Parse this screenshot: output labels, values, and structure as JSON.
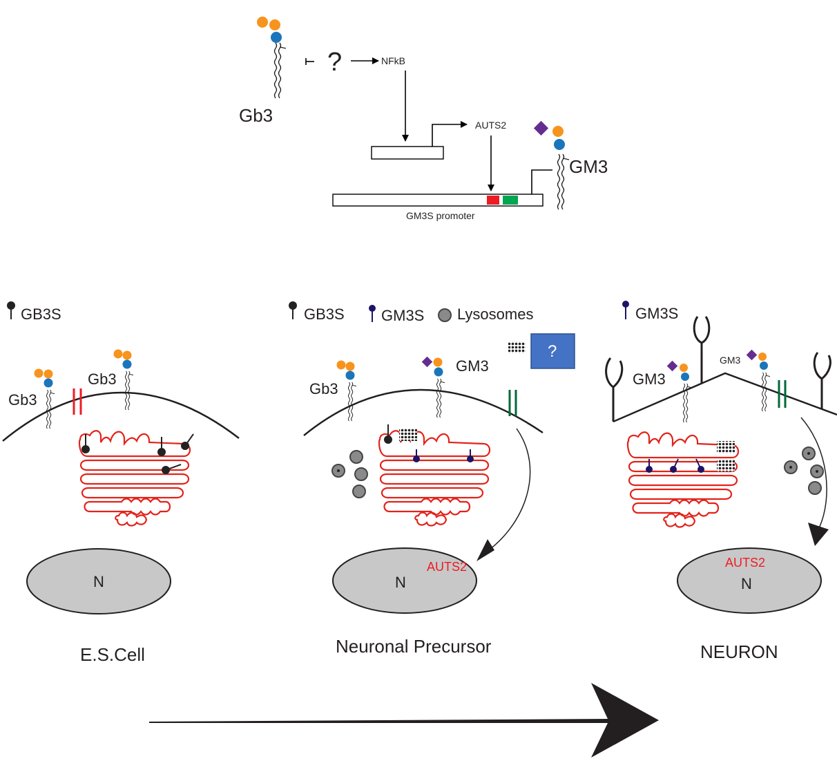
{
  "pathway": {
    "gb3_label": "Gb3",
    "question_mark": "?",
    "nfkb_label": "NFkB",
    "auts2_label": "AUTS2",
    "gm3_label": "GM3",
    "promoter_label": "GM3S promoter"
  },
  "legend": {
    "gb3s": "GB3S",
    "gm3s": "GM3S",
    "lysosomes": "Lysosomes",
    "unknown_box": "?"
  },
  "cells": {
    "es_cell": {
      "title": "E.S.Cell",
      "nucleus": "N",
      "gb3_left": "Gb3",
      "gb3_right": "Gb3"
    },
    "precursor": {
      "title": "Neuronal Precursor",
      "nucleus": "N",
      "auts2": "AUTS2",
      "gb3": "Gb3",
      "gm3": "GM3"
    },
    "neuron": {
      "title": "NEURON",
      "nucleus": "N",
      "auts2": "AUTS2",
      "gm3_left": "GM3",
      "gm3_right": "GM3"
    }
  },
  "colors": {
    "orange": "#f7941d",
    "blue": "#1b75bb",
    "purple": "#662d91",
    "red": "#ed1c24",
    "green": "#00a651",
    "dark_green": "#006838",
    "navy": "#1b1464",
    "golgi": "#e2231a",
    "nucleus_fill": "#c8c8c8",
    "question_box": "#4472c4"
  }
}
